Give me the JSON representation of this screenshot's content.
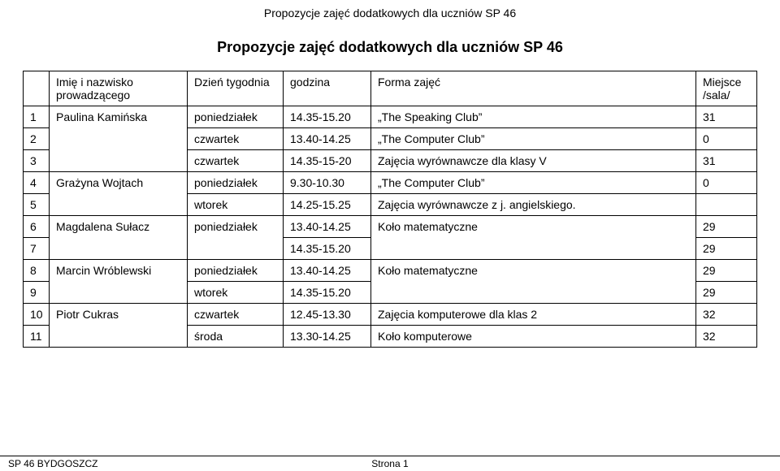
{
  "page_header": "Propozycje zajęć dodatkowych dla uczniów SP 46",
  "title": "Propozycje zajęć dodatkowych  dla uczniów SP 46",
  "columns": {
    "num": "",
    "name": "Imię i nazwisko prowadzącego",
    "day": "Dzień tygodnia",
    "hour": "godzina",
    "form": "Forma zajęć",
    "place": "Miejsce /sala/"
  },
  "rows": [
    {
      "num": "1",
      "name": "Paulina Kamińska",
      "day": "poniedziałek",
      "hour": "14.35-15.20",
      "form": "„The Speaking Club”",
      "place": "31"
    },
    {
      "num": "2",
      "name": "",
      "day": "czwartek",
      "hour": "13.40-14.25",
      "form": "„The Computer Club”",
      "place": "0"
    },
    {
      "num": "3",
      "name": "",
      "day": "czwartek",
      "hour": "14.35-15-20",
      "form": "Zajęcia wyrównawcze dla klasy V",
      "place": "31"
    },
    {
      "num": "4",
      "name": "Grażyna Wojtach",
      "day": "poniedziałek",
      "hour": "9.30-10.30",
      "form": "„The Computer Club”",
      "place": "0"
    },
    {
      "num": "5",
      "name": "",
      "day": "wtorek",
      "hour": "14.25-15.25",
      "form": "Zajęcia wyrównawcze z j. angielskiego.",
      "place": ""
    },
    {
      "num": "6",
      "name": "Magdalena Sułacz",
      "day": "poniedziałek",
      "hour": "13.40-14.25",
      "form": "Koło matematyczne",
      "place": "29"
    },
    {
      "num": "7",
      "name": "",
      "day": "",
      "hour": "14.35-15.20",
      "form": "",
      "place": "29"
    },
    {
      "num": "8",
      "name": "Marcin Wróblewski",
      "day": "poniedziałek",
      "hour": "13.40-14.25",
      "form": "Koło matematyczne",
      "place": "29"
    },
    {
      "num": "9",
      "name": "",
      "day": "wtorek",
      "hour": "14.35-15.20",
      "form": "",
      "place": "29"
    },
    {
      "num": "10",
      "name": "Piotr Cukras",
      "day": "czwartek",
      "hour": "12.45-13.30",
      "form": "Zajęcia komputerowe dla klas 2",
      "place": "32"
    },
    {
      "num": "11",
      "name": "",
      "day": "środa",
      "hour": "13.30-14.25",
      "form": "Koło komputerowe",
      "place": "32"
    }
  ],
  "footer": {
    "left": "SP 46 BYDGOSZCZ",
    "center": "Strona 1"
  },
  "colors": {
    "text": "#000000",
    "border": "#000000",
    "background": "#ffffff"
  }
}
